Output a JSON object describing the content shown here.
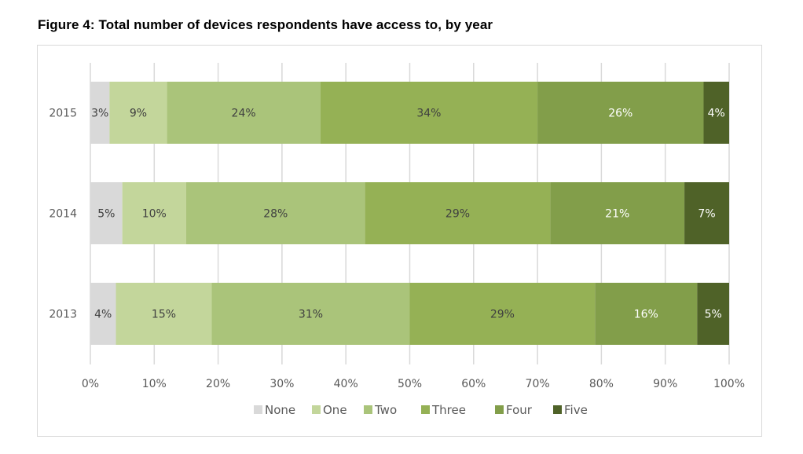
{
  "figure_title": "Figure 4: Total number of devices respondents have access to, by year",
  "chart_data": {
    "type": "bar",
    "orientation": "horizontal",
    "stacked": "percent",
    "title": "Figure 4: Total number of devices respondents have access to, by year",
    "xlabel": "",
    "ylabel": "",
    "categories": [
      "2015",
      "2014",
      "2013"
    ],
    "xlim": [
      0,
      100
    ],
    "x_ticks": [
      "0%",
      "10%",
      "20%",
      "30%",
      "40%",
      "50%",
      "60%",
      "70%",
      "80%",
      "90%",
      "100%"
    ],
    "grid": "vertical",
    "legend_position": "bottom",
    "series": [
      {
        "name": "None",
        "color": "#d9d9d9",
        "label_color": "#404040",
        "values": [
          3,
          5,
          4
        ]
      },
      {
        "name": "One",
        "color": "#c3d69b",
        "label_color": "#404040",
        "values": [
          9,
          10,
          15
        ]
      },
      {
        "name": "Two",
        "color": "#aac47a",
        "label_color": "#404040",
        "values": [
          24,
          28,
          31
        ]
      },
      {
        "name": "Three",
        "color": "#95b155",
        "label_color": "#404040",
        "values": [
          34,
          29,
          29
        ]
      },
      {
        "name": "Four",
        "color": "#829e4a",
        "label_color": "#ffffff",
        "values": [
          26,
          21,
          16
        ]
      },
      {
        "name": "Five",
        "color": "#4f6228",
        "label_color": "#ffffff",
        "values": [
          4,
          7,
          5
        ]
      }
    ],
    "data_labels": [
      [
        "3%",
        "5%",
        "4%"
      ],
      [
        "9%",
        "10%",
        "15%"
      ],
      [
        "24%",
        "28%",
        "31%"
      ],
      [
        "34%",
        "29%",
        "29%"
      ],
      [
        "26%",
        "21%",
        "16%"
      ],
      [
        "4%",
        "7%",
        "5%"
      ]
    ]
  }
}
